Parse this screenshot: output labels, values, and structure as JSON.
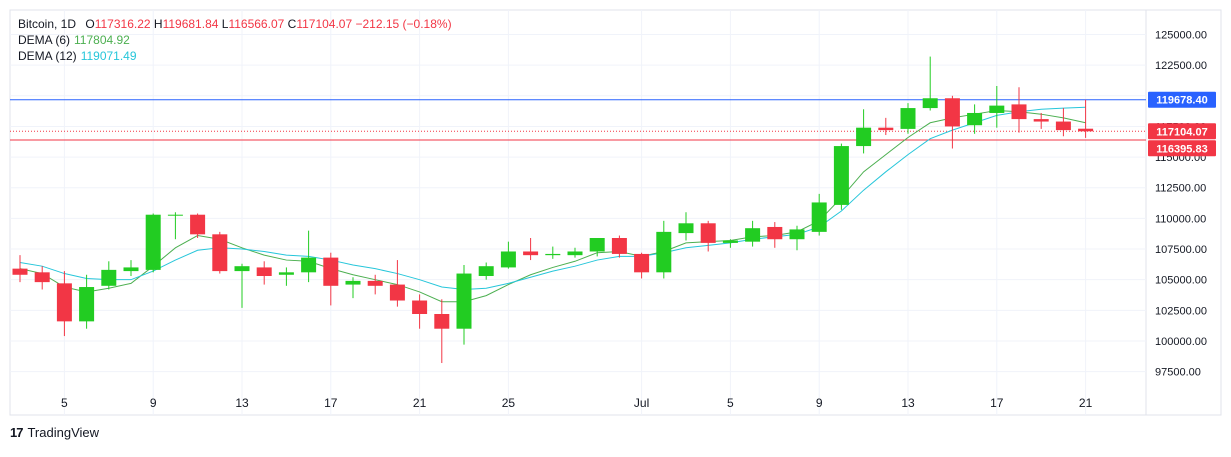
{
  "legend": {
    "symbol": "Bitcoin, 1D",
    "open_label": "O",
    "open": "117316.22",
    "high_label": "H",
    "high": "119681.84",
    "low_label": "L",
    "low": "116566.07",
    "close_label": "C",
    "close": "117104.07",
    "change": "−212.15 (−0.18%)",
    "dema6_label": "DEMA (6)",
    "dema6_value": "117804.92",
    "dema12_label": "DEMA (12)",
    "dema12_value": "119071.49"
  },
  "footer": {
    "brand": "TradingView",
    "logo": "17"
  },
  "colors": {
    "up": "#22cc22",
    "down": "#f23645",
    "dema6": "#4caf50",
    "dema12": "#26c6da",
    "blue_line": "#2962ff",
    "red_line": "#f23645",
    "grid": "#f0f3fa",
    "axis_text": "#131722"
  },
  "chart_data": {
    "type": "candlestick",
    "title": "Bitcoin, 1D",
    "ylim": [
      96000,
      127000
    ],
    "y_ticks": [
      {
        "value": 125000,
        "label": "125000.00"
      },
      {
        "value": 122500,
        "label": "122500.00"
      },
      {
        "value": 120000,
        "label": "120000.00"
      },
      {
        "value": 117500,
        "label": "117500.00"
      },
      {
        "value": 115000,
        "label": "115000.00"
      },
      {
        "value": 112500,
        "label": "112500.00"
      },
      {
        "value": 110000,
        "label": "110000.00"
      },
      {
        "value": 107500,
        "label": "107500.00"
      },
      {
        "value": 105000,
        "label": "105000.00"
      },
      {
        "value": 102500,
        "label": "102500.00"
      },
      {
        "value": 100000,
        "label": "100000.00"
      },
      {
        "value": 97500,
        "label": "97500.00"
      }
    ],
    "x_ticks": [
      {
        "index": 2,
        "label": "5"
      },
      {
        "index": 6,
        "label": "9"
      },
      {
        "index": 10,
        "label": "13"
      },
      {
        "index": 14,
        "label": "17"
      },
      {
        "index": 18,
        "label": "21"
      },
      {
        "index": 22,
        "label": "25"
      },
      {
        "index": 28,
        "label": "Jul"
      },
      {
        "index": 32,
        "label": "5"
      },
      {
        "index": 36,
        "label": "9"
      },
      {
        "index": 40,
        "label": "13"
      },
      {
        "index": 44,
        "label": "17"
      },
      {
        "index": 48,
        "label": "21"
      }
    ],
    "candles": [
      {
        "o": 105900,
        "h": 107000,
        "l": 104800,
        "c": 105400
      },
      {
        "o": 105600,
        "h": 106100,
        "l": 104200,
        "c": 104800
      },
      {
        "o": 104700,
        "h": 105700,
        "l": 100400,
        "c": 101600
      },
      {
        "o": 101600,
        "h": 105400,
        "l": 101000,
        "c": 104400
      },
      {
        "o": 104500,
        "h": 106500,
        "l": 104200,
        "c": 105800
      },
      {
        "o": 105700,
        "h": 106600,
        "l": 105300,
        "c": 106000
      },
      {
        "o": 105800,
        "h": 110400,
        "l": 105600,
        "c": 110300
      },
      {
        "o": 110300,
        "h": 110500,
        "l": 108300,
        "c": 110300
      },
      {
        "o": 110300,
        "h": 110400,
        "l": 108400,
        "c": 108700
      },
      {
        "o": 108700,
        "h": 108900,
        "l": 105500,
        "c": 105700
      },
      {
        "o": 105700,
        "h": 106300,
        "l": 102700,
        "c": 106100
      },
      {
        "o": 106000,
        "h": 106500,
        "l": 104600,
        "c": 105300
      },
      {
        "o": 105400,
        "h": 106000,
        "l": 104500,
        "c": 105600
      },
      {
        "o": 105600,
        "h": 109000,
        "l": 104800,
        "c": 106800
      },
      {
        "o": 106800,
        "h": 107200,
        "l": 102900,
        "c": 104500
      },
      {
        "o": 104600,
        "h": 105200,
        "l": 103500,
        "c": 104900
      },
      {
        "o": 104900,
        "h": 105400,
        "l": 103800,
        "c": 104500
      },
      {
        "o": 104600,
        "h": 106600,
        "l": 102800,
        "c": 103300
      },
      {
        "o": 103300,
        "h": 103800,
        "l": 101000,
        "c": 102200
      },
      {
        "o": 102200,
        "h": 103400,
        "l": 98200,
        "c": 101000
      },
      {
        "o": 101000,
        "h": 106200,
        "l": 99700,
        "c": 105500
      },
      {
        "o": 105300,
        "h": 106400,
        "l": 105000,
        "c": 106100
      },
      {
        "o": 106000,
        "h": 108100,
        "l": 105900,
        "c": 107300
      },
      {
        "o": 107300,
        "h": 108400,
        "l": 106600,
        "c": 107000
      },
      {
        "o": 107000,
        "h": 107700,
        "l": 106700,
        "c": 107100
      },
      {
        "o": 107000,
        "h": 107600,
        "l": 106800,
        "c": 107300
      },
      {
        "o": 107300,
        "h": 108300,
        "l": 106900,
        "c": 108400
      },
      {
        "o": 108400,
        "h": 108600,
        "l": 106800,
        "c": 107100
      },
      {
        "o": 107100,
        "h": 107200,
        "l": 105100,
        "c": 105600
      },
      {
        "o": 105600,
        "h": 109800,
        "l": 105100,
        "c": 108900
      },
      {
        "o": 108800,
        "h": 110500,
        "l": 108200,
        "c": 109600
      },
      {
        "o": 109600,
        "h": 109800,
        "l": 107300,
        "c": 108000
      },
      {
        "o": 108000,
        "h": 108300,
        "l": 107600,
        "c": 108200
      },
      {
        "o": 108100,
        "h": 109800,
        "l": 107700,
        "c": 109200
      },
      {
        "o": 109300,
        "h": 109700,
        "l": 107600,
        "c": 108300
      },
      {
        "o": 108300,
        "h": 109400,
        "l": 107400,
        "c": 109100
      },
      {
        "o": 108900,
        "h": 112000,
        "l": 108600,
        "c": 111300
      },
      {
        "o": 111100,
        "h": 116100,
        "l": 110700,
        "c": 115900
      },
      {
        "o": 115900,
        "h": 118900,
        "l": 115300,
        "c": 117400
      },
      {
        "o": 117400,
        "h": 118200,
        "l": 116800,
        "c": 117200
      },
      {
        "o": 117300,
        "h": 119400,
        "l": 116900,
        "c": 119000
      },
      {
        "o": 119000,
        "h": 123200,
        "l": 118800,
        "c": 119800
      },
      {
        "o": 119800,
        "h": 120000,
        "l": 115700,
        "c": 117500
      },
      {
        "o": 117600,
        "h": 119300,
        "l": 116900,
        "c": 118600
      },
      {
        "o": 118600,
        "h": 120800,
        "l": 117400,
        "c": 119200
      },
      {
        "o": 119300,
        "h": 120700,
        "l": 117000,
        "c": 118100
      },
      {
        "o": 118100,
        "h": 118600,
        "l": 117300,
        "c": 117900
      },
      {
        "o": 117900,
        "h": 119000,
        "l": 116700,
        "c": 117200
      },
      {
        "o": 117316.22,
        "h": 119681.84,
        "l": 116566.07,
        "c": 117104.07
      }
    ],
    "series": [
      {
        "name": "DEMA (6)",
        "values": [
          105900,
          105500,
          104400,
          104000,
          104300,
          104700,
          106100,
          107600,
          108600,
          108300,
          107600,
          107000,
          106600,
          106500,
          105900,
          105400,
          105000,
          104600,
          104000,
          103200,
          103200,
          103700,
          104600,
          105400,
          106000,
          106500,
          107200,
          107300,
          106900,
          107300,
          108000,
          108100,
          108200,
          108500,
          108600,
          108900,
          109800,
          111700,
          113800,
          115200,
          116600,
          117800,
          118200,
          118500,
          118800,
          118700,
          118500,
          118200,
          117804.92
        ]
      },
      {
        "name": "DEMA (12)",
        "values": [
          106400,
          106100,
          105500,
          105100,
          105000,
          105000,
          105700,
          106600,
          107400,
          107600,
          107500,
          107300,
          107000,
          106900,
          106600,
          106200,
          105900,
          105500,
          105000,
          104400,
          104200,
          104300,
          104700,
          105200,
          105700,
          106100,
          106600,
          106900,
          106900,
          107200,
          107600,
          107800,
          108000,
          108300,
          108500,
          108700,
          109300,
          110600,
          112300,
          113800,
          115200,
          116500,
          117200,
          117800,
          118400,
          118700,
          118900,
          119000,
          119071.49
        ]
      }
    ],
    "price_markers": [
      {
        "value": 119678.4,
        "label": "119678.40",
        "color": "#2962ff",
        "style": "solid"
      },
      {
        "value": 117104.07,
        "label": "117104.07",
        "color": "#f23645",
        "style": "dotted"
      },
      {
        "value": 116395.83,
        "label": "116395.83",
        "color": "#f23645",
        "style": "solid"
      }
    ],
    "grid": true,
    "legend_position": "top-left"
  }
}
